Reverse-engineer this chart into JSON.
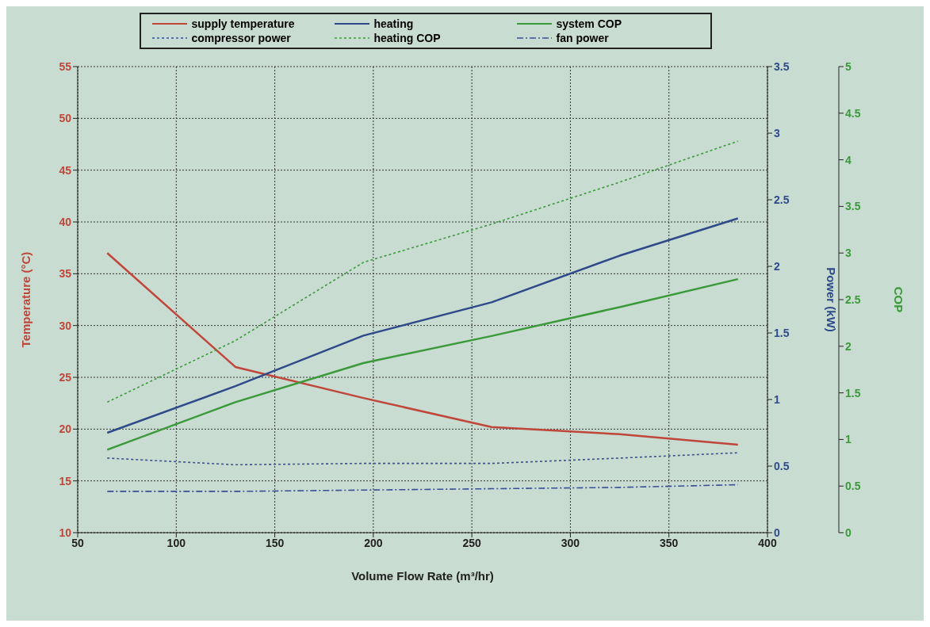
{
  "chart_data": {
    "type": "line",
    "xlabel": "Volume Flow Rate (m³/hr)",
    "ylabel": "Temperature (°C)",
    "y2label": "Power (kW)",
    "y3label": "COP",
    "x": [
      65,
      130,
      195,
      260,
      325,
      385
    ],
    "xlim": [
      50,
      400
    ],
    "xticks": [
      50,
      100,
      150,
      200,
      250,
      300,
      350,
      400
    ],
    "ylim": [
      10,
      55
    ],
    "yticks": [
      10,
      15,
      20,
      25,
      30,
      35,
      40,
      45,
      50,
      55
    ],
    "y2lim": [
      0,
      3.5
    ],
    "y2ticks": [
      0,
      0.5,
      1,
      1.5,
      2,
      2.5,
      3,
      3.5
    ],
    "y3lim": [
      0,
      5
    ],
    "y3ticks": [
      0,
      0.5,
      1,
      1.5,
      2,
      2.5,
      3,
      3.5,
      4,
      4.5,
      5
    ],
    "grid": true,
    "legend": "top",
    "marker": "none",
    "series": [
      {
        "name": "supply temperature",
        "color": "#c0463a",
        "line_style": "solid",
        "values": [
          37,
          26,
          23,
          20.2,
          19.5,
          18.5
        ]
      },
      {
        "name": "heating",
        "color": "#2e4a8a",
        "line_style": "solid",
        "axis": "y2",
        "values": [
          0.75,
          1.1,
          1.48,
          1.73,
          2.08,
          2.36
        ]
      },
      {
        "name": "system COP",
        "color": "#3a9a3a",
        "line_style": "solid",
        "axis": "y3",
        "values": [
          0.89,
          1.4,
          1.82,
          2.11,
          2.42,
          2.72
        ]
      },
      {
        "name": "compressor power",
        "color": "#3a4f9a",
        "line_style": "dotted",
        "axis": "y2",
        "values": [
          0.56,
          0.51,
          0.52,
          0.52,
          0.56,
          0.6
        ]
      },
      {
        "name": "heating COP",
        "color": "#3a9a3a",
        "line_style": "dotted",
        "axis": "y3",
        "values": [
          1.4,
          2.06,
          2.9,
          3.31,
          3.76,
          4.2
        ]
      },
      {
        "name": "fan power",
        "color": "#3a4f9a",
        "line_style": "dashdot",
        "axis": "y2",
        "values": [
          0.31,
          0.31,
          0.32,
          0.33,
          0.34,
          0.36
        ]
      }
    ]
  }
}
